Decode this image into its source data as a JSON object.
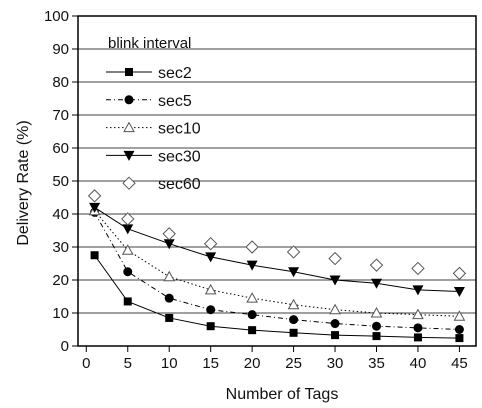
{
  "chart_data": {
    "type": "line",
    "xlabel": "Number of Tags",
    "ylabel": "Delivery Rate (%)",
    "x_ticks": [
      "0",
      "5",
      "10",
      "15",
      "20",
      "25",
      "30",
      "35",
      "40",
      "45"
    ],
    "y_ticks": [
      "0",
      "10",
      "20",
      "30",
      "40",
      "50",
      "60",
      "70",
      "80",
      "90",
      "100"
    ],
    "xlim": [
      -1,
      47
    ],
    "ylim": [
      0,
      100
    ],
    "grid": "horizontal",
    "legend_title": "blink interval",
    "legend_position": "top-left",
    "x": [
      1,
      5,
      10,
      15,
      20,
      25,
      30,
      35,
      40,
      45
    ],
    "series": [
      {
        "name": "sec2",
        "marker": "square-filled",
        "dash": "solid",
        "values": [
          27.5,
          13.5,
          8.5,
          6,
          4.8,
          4,
          3.3,
          3,
          2.6,
          2.4
        ]
      },
      {
        "name": "sec5",
        "marker": "circle-filled",
        "dash": "dashdot",
        "values": [
          40.5,
          22.5,
          14.5,
          11,
          9.5,
          8,
          6.8,
          6,
          5.5,
          5
        ]
      },
      {
        "name": "sec10",
        "marker": "triangle-open",
        "dash": "dotted",
        "values": [
          41,
          29,
          21,
          17,
          14.5,
          12.5,
          11,
          10,
          9.5,
          9
        ]
      },
      {
        "name": "sec30",
        "marker": "triangle-down-filled",
        "dash": "solid",
        "values": [
          42,
          35.5,
          31,
          27,
          24.5,
          22.5,
          20,
          19,
          17,
          16.5
        ]
      },
      {
        "name": "sec60",
        "marker": "diamond-open",
        "dash": "none",
        "values": [
          45.5,
          38.5,
          34,
          31,
          30,
          28.5,
          26.5,
          24.5,
          23.5,
          22
        ]
      }
    ]
  }
}
